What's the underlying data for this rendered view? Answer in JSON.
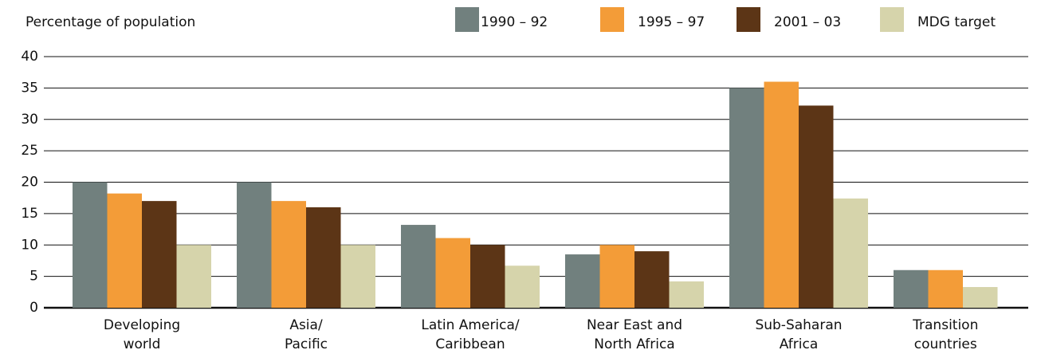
{
  "chart_data": {
    "type": "bar",
    "y_axis_label": "Percentage of population",
    "categories": [
      "Developing\nworld",
      "Asia/\nPacific",
      "Latin America/\nCaribbean",
      "Near East and\nNorth Africa",
      "Sub-Saharan\nAfrica",
      "Transition\ncountries"
    ],
    "series": [
      {
        "name": "1990 – 92",
        "color": "#71807e",
        "values": [
          20,
          20,
          13.2,
          8.5,
          35,
          6
        ]
      },
      {
        "name": "1995 – 97",
        "color": "#f39c38",
        "values": [
          18.2,
          17,
          11.1,
          10,
          36,
          6
        ]
      },
      {
        "name": "2001 – 03",
        "color": "#5c3516",
        "values": [
          17,
          16,
          10,
          9,
          32.2,
          null
        ]
      },
      {
        "name": "MDG target",
        "color": "#d6d4ab",
        "values": [
          10,
          10,
          6.7,
          4.2,
          17.4,
          3.3
        ]
      }
    ],
    "ylim": [
      0,
      40
    ],
    "yticks": [
      0,
      5,
      10,
      15,
      20,
      25,
      30,
      35,
      40
    ],
    "grid": true
  }
}
